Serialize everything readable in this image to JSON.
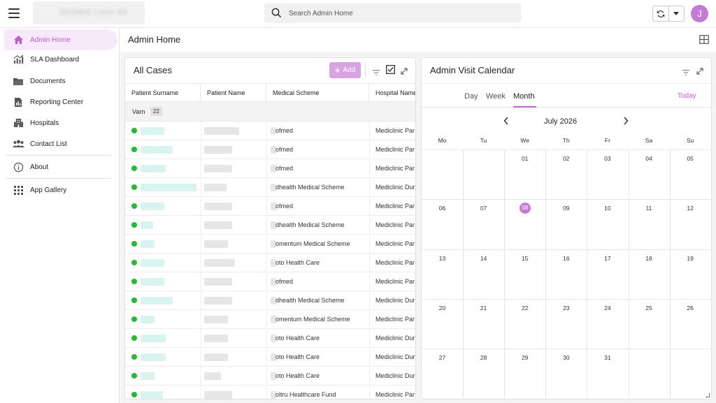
{
  "topbar": {
    "logo_text": "SCOMS Liner 03",
    "search_placeholder": "Search Admin Home",
    "avatar_initial": "J"
  },
  "sidebar": {
    "items": [
      {
        "label": "Admin Home",
        "icon": "home-icon",
        "active": true
      },
      {
        "label": "SLA Dashboard",
        "icon": "chart-icon",
        "active": false
      },
      {
        "label": "Documents",
        "icon": "folder-icon",
        "active": false
      },
      {
        "label": "Reporting Center",
        "icon": "report-icon",
        "active": false
      },
      {
        "label": "Hospitals",
        "icon": "building-icon",
        "active": false
      },
      {
        "label": "Contact List",
        "icon": "people-icon",
        "active": false
      },
      {
        "label": "About",
        "icon": "info-icon",
        "active": false
      },
      {
        "label": "App Gallery",
        "icon": "apps-grid-icon",
        "active": false
      }
    ]
  },
  "main": {
    "title": "Admin Home"
  },
  "cases": {
    "title": "All Cases",
    "add_label": "Add",
    "columns": [
      "Patient Surname",
      "Patient Name",
      "Medical Scheme",
      "Hospital Name"
    ],
    "group": {
      "label": "Varn",
      "count": "22"
    },
    "rows": [
      {
        "scheme": "ofmed",
        "hospital": "Mediclinic Par"
      },
      {
        "scheme": "ofmed",
        "hospital": "Mediclinic Par"
      },
      {
        "scheme": "ofmed",
        "hospital": "Mediclinic Par"
      },
      {
        "scheme": "dhealth Medical Scheme",
        "hospital": "Mediclinic Dur"
      },
      {
        "scheme": "ofmed",
        "hospital": "Mediclinic Par"
      },
      {
        "scheme": "dhealth Medical Scheme",
        "hospital": "Mediclinic Par"
      },
      {
        "scheme": "omentum Medical Scheme",
        "hospital": "Mediclinic Par"
      },
      {
        "scheme": "oto Health Care",
        "hospital": "Mediclinic Par"
      },
      {
        "scheme": "ofmed",
        "hospital": "Mediclinic Par"
      },
      {
        "scheme": "dhealth Medical Scheme",
        "hospital": "Mediclinic Dur"
      },
      {
        "scheme": "omentum Medical Scheme",
        "hospital": "Mediclinic Par"
      },
      {
        "scheme": "oto Health Care",
        "hospital": "Mediclinic Dur"
      },
      {
        "scheme": "oto Health Care",
        "hospital": "Mediclinic Dur"
      },
      {
        "scheme": "oto Health Care",
        "hospital": "Mediclinic Dur"
      },
      {
        "scheme": "oltru Healthcare Fund",
        "hospital": "Mediclinic Par"
      }
    ]
  },
  "calendar": {
    "title": "Admin Visit Calendar",
    "tabs": [
      "Day",
      "Week",
      "Month"
    ],
    "active_tab": "Month",
    "today_label": "Today",
    "month_label": "July 2026",
    "weekdays": [
      "Mo",
      "Tu",
      "We",
      "Th",
      "Fr",
      "Sa",
      "Su"
    ],
    "weeks": [
      [
        "",
        "",
        "01",
        "02",
        "03",
        "04",
        "05"
      ],
      [
        "06",
        "07",
        "08",
        "09",
        "10",
        "11",
        "12"
      ],
      [
        "13",
        "14",
        "15",
        "16",
        "17",
        "18",
        "19"
      ],
      [
        "20",
        "21",
        "22",
        "23",
        "24",
        "25",
        "26"
      ],
      [
        "27",
        "28",
        "29",
        "30",
        "31",
        "",
        ""
      ]
    ],
    "today": "08"
  },
  "colors": {
    "accent": "#c05fcf",
    "accent_light": "#f7e8fa",
    "add_button": "#d9a3e3",
    "status_dot": "#22bb33"
  }
}
